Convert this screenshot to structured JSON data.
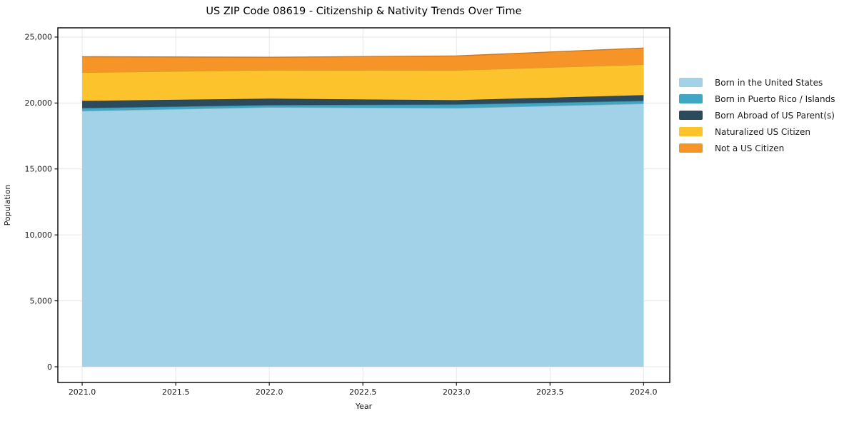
{
  "chart_data": {
    "type": "area",
    "stacked": true,
    "title": "US ZIP Code 08619 - Citizenship & Nativity Trends Over Time",
    "xlabel": "Year",
    "ylabel": "Population",
    "x": [
      2021,
      2022,
      2023,
      2024
    ],
    "series": [
      {
        "name": "Born in the United States",
        "color": "#a2d2e7",
        "values": [
          19400,
          19680,
          19620,
          19950
        ]
      },
      {
        "name": "Born in Puerto Rico / Islands",
        "color": "#41a6c4",
        "values": [
          220,
          160,
          270,
          215
        ]
      },
      {
        "name": "Born Abroad of US Parent(s)",
        "color": "#2b4a5c",
        "values": [
          540,
          490,
          325,
          430
        ]
      },
      {
        "name": "Naturalized US Citizen",
        "color": "#fcc32d",
        "values": [
          2160,
          2170,
          2275,
          2330
        ]
      },
      {
        "name": "Not a US Citizen",
        "color": "#f79428",
        "values": [
          1190,
          970,
          1080,
          1240
        ]
      }
    ],
    "xlim": [
      2020.87,
      2024.14
    ],
    "ylim": [
      -1190,
      25700
    ],
    "xticks": [
      2021.0,
      2021.5,
      2022.0,
      2022.5,
      2023.0,
      2023.5,
      2024.0
    ],
    "xtick_labels": [
      "2021.0",
      "2021.5",
      "2022.0",
      "2022.5",
      "2023.0",
      "2023.5",
      "2024.0"
    ],
    "yticks": [
      0,
      5000,
      10000,
      15000,
      20000,
      25000
    ],
    "ytick_labels": [
      "0",
      "5,000",
      "10,000",
      "15,000",
      "20,000",
      "25,000"
    ],
    "grid": true,
    "grid_color": "#e7e7e7",
    "spine_color": "#000000",
    "tick_label_color": "#1a1a1a",
    "legend_position": "right"
  }
}
